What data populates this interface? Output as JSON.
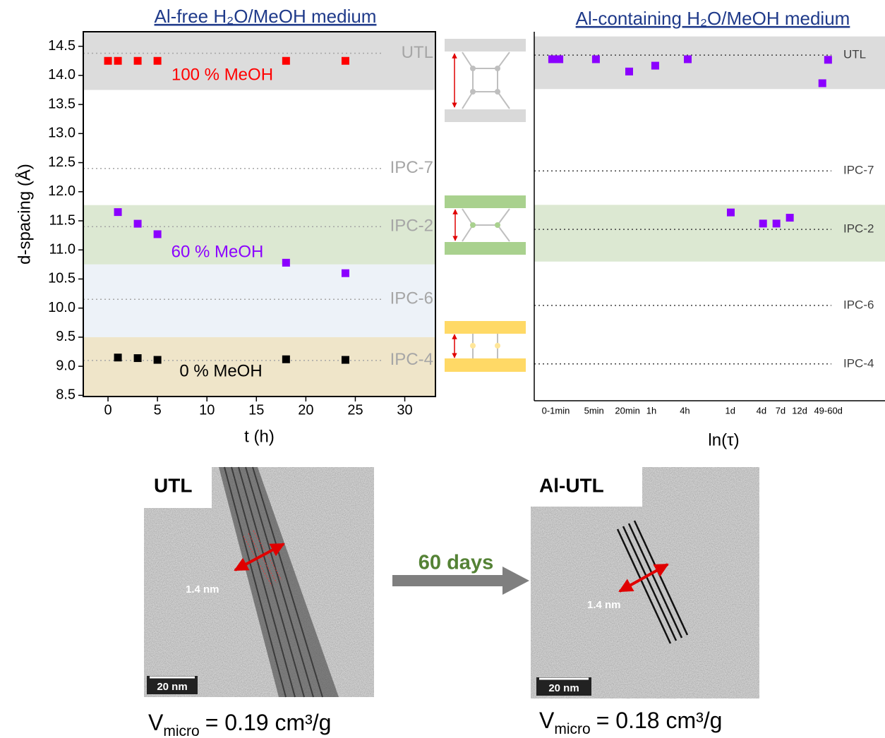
{
  "chart_data": [
    {
      "type": "scatter",
      "title": "Al-free H₂O/MeOH medium",
      "x_label": "t (h)",
      "y_label": "d-spacing (Å)",
      "xlim": [
        -2.5,
        33.1
      ],
      "xticks": [
        0,
        5,
        10,
        15,
        20,
        25,
        30
      ],
      "ylim": [
        8.48,
        14.75
      ],
      "yticks": [
        8.5,
        {
          "value": 9,
          "label": "9.0"
        },
        9.5,
        {
          "value": 10,
          "label": "10.0"
        },
        10.5,
        {
          "value": 11,
          "label": "11.0"
        },
        11.5,
        {
          "value": 12,
          "label": "12.0"
        },
        12.5,
        {
          "value": 13,
          "label": "13.0"
        },
        13.5,
        {
          "value": 14,
          "label": "14.0"
        },
        14.5
      ],
      "bands": [
        {
          "from": 13.75,
          "to": 14.75,
          "color": "#dcdcdc"
        },
        {
          "from": 10.75,
          "to": 11.77,
          "color": "#dce8d2"
        },
        {
          "from": 9.5,
          "to": 10.75,
          "color": "#edf2f8"
        },
        {
          "from": 8.48,
          "to": 9.5,
          "color": "#efe5c9"
        }
      ],
      "reference_lines": [
        {
          "label": "UTL",
          "value": 14.38
        },
        {
          "label": "IPC-7",
          "value": 12.4
        },
        {
          "label": "IPC-2",
          "value": 11.4
        },
        {
          "label": "IPC-6",
          "value": 10.15
        },
        {
          "label": "IPC-4",
          "value": 9.1
        }
      ],
      "series": [
        {
          "name": "100 % MeOH",
          "color": "#ff0000",
          "x": [
            0,
            1,
            3,
            5,
            18,
            24
          ],
          "values": [
            14.25,
            14.25,
            14.25,
            14.25,
            14.25,
            14.25
          ]
        },
        {
          "name": "60 % MeOH",
          "color": "#8b00ff",
          "x": [
            1,
            3,
            5,
            18,
            24
          ],
          "values": [
            11.65,
            11.45,
            11.27,
            10.78,
            10.6
          ]
        },
        {
          "name": "0 % MeOH",
          "color": "#000000",
          "x": [
            1,
            3,
            5,
            18,
            24
          ],
          "values": [
            9.15,
            9.14,
            9.11,
            9.12,
            9.11
          ]
        }
      ]
    },
    {
      "type": "scatter",
      "title": "Al-containing H₂O/MeOH medium",
      "x_label": "ln(τ)",
      "xlim": [
        -0.9,
        13.8
      ],
      "xticks": [
        {
          "value": 0,
          "label": "0-1min"
        },
        {
          "value": 1.6,
          "label": "5min"
        },
        {
          "value": 3.0,
          "label": "20min"
        },
        {
          "value": 4.0,
          "label": "1h"
        },
        {
          "value": 5.4,
          "label": "4h"
        },
        {
          "value": 7.3,
          "label": "1d"
        },
        {
          "value": 8.6,
          "label": "4d"
        },
        {
          "value": 9.4,
          "label": "7d"
        },
        {
          "value": 10.2,
          "label": "12d"
        },
        {
          "value": 11.4,
          "label": "49-60d"
        }
      ],
      "ylim": [
        8.47,
        14.78
      ],
      "bands": [
        {
          "from": 13.8,
          "to": 14.7,
          "color": "#dcdcdc"
        },
        {
          "from": 10.85,
          "to": 11.82,
          "color": "#dce8d2"
        }
      ],
      "reference_lines": [
        {
          "label": "UTL",
          "value": 14.38
        },
        {
          "label": "IPC-7",
          "value": 12.4
        },
        {
          "label": "IPC-2",
          "value": 11.4
        },
        {
          "label": "IPC-6",
          "value": 10.1
        },
        {
          "label": "IPC-4",
          "value": 9.1
        }
      ],
      "series": [
        {
          "color": "#8b00ff",
          "x": [
            -0.15,
            0.15,
            1.68,
            3.07,
            4.16,
            5.52,
            7.32,
            8.67,
            9.23,
            9.79,
            11.15,
            11.39
          ],
          "values": [
            14.31,
            14.31,
            14.31,
            14.1,
            14.2,
            14.31,
            11.69,
            11.5,
            11.5,
            11.6,
            13.9,
            14.3
          ]
        }
      ]
    }
  ],
  "figures": [
    {
      "label": "UTL",
      "measure": "1.4 nm",
      "scale": "20 nm",
      "caption": {
        "main": "V",
        "sub": "micro",
        "rest": "= 0.19 cm³/g"
      }
    },
    {
      "label": "Al-UTL",
      "measure": "1.4 nm",
      "scale": "20 nm",
      "caption": {
        "main": "V",
        "sub": "micro",
        "rest": "= 0.18 cm³/g"
      }
    }
  ],
  "transition": "60 days"
}
